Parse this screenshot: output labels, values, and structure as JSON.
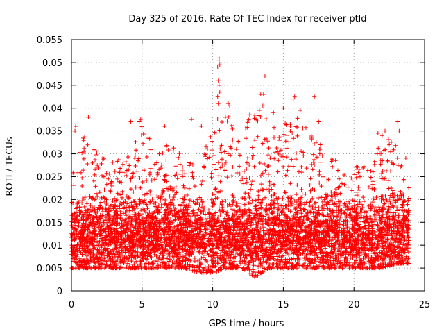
{
  "chart_data": {
    "type": "scatter",
    "title": "Day 325 of 2016, Rate Of TEC Index for receiver ptld",
    "xlabel": "GPS time / hours",
    "ylabel": "ROTI / TECUs",
    "xlim": [
      0,
      25
    ],
    "ylim": [
      0,
      0.055
    ],
    "xticks": [
      "0",
      "5",
      "10",
      "15",
      "20",
      "25"
    ],
    "xtick_values": [
      0,
      5,
      10,
      15,
      20,
      25
    ],
    "yticks": [
      "0",
      "0.005",
      "0.01",
      "0.015",
      "0.02",
      "0.025",
      "0.03",
      "0.035",
      "0.04",
      "0.045",
      "0.05",
      "0.055"
    ],
    "ytick_values": [
      0,
      0.005,
      0.01,
      0.015,
      0.02,
      0.025,
      0.03,
      0.035,
      0.04,
      0.045,
      0.05,
      0.055
    ],
    "grid": true,
    "marker": "+",
    "color": "#ff0000",
    "series": [
      {
        "name": "ROTI",
        "x_range": [
          0,
          23.9
        ],
        "envelope_hours": [
          0,
          1,
          2,
          3,
          4,
          5,
          6,
          7,
          8,
          9,
          10,
          11,
          12,
          13,
          14,
          15,
          16,
          17,
          18,
          19,
          20,
          21,
          22,
          23,
          24
        ],
        "envelope_min": [
          0.005,
          0.005,
          0.005,
          0.005,
          0.005,
          0.005,
          0.005,
          0.005,
          0.005,
          0.004,
          0.004,
          0.005,
          0.005,
          0.003,
          0.005,
          0.005,
          0.005,
          0.005,
          0.005,
          0.005,
          0.005,
          0.005,
          0.005,
          0.006,
          0.006
        ],
        "envelope_max": [
          0.026,
          0.035,
          0.03,
          0.029,
          0.03,
          0.037,
          0.032,
          0.033,
          0.03,
          0.03,
          0.037,
          0.04,
          0.033,
          0.043,
          0.037,
          0.037,
          0.038,
          0.036,
          0.03,
          0.029,
          0.028,
          0.027,
          0.034,
          0.033,
          0.028
        ],
        "typical": 0.012,
        "outliers": [
          {
            "x": 0.3,
            "y": 0.036
          },
          {
            "x": 0.25,
            "y": 0.035
          },
          {
            "x": 1.2,
            "y": 0.038
          },
          {
            "x": 4.2,
            "y": 0.037
          },
          {
            "x": 4.8,
            "y": 0.037
          },
          {
            "x": 4.9,
            "y": 0.0375
          },
          {
            "x": 6.6,
            "y": 0.036
          },
          {
            "x": 8.5,
            "y": 0.0375
          },
          {
            "x": 9.2,
            "y": 0.036
          },
          {
            "x": 10.45,
            "y": 0.051
          },
          {
            "x": 10.45,
            "y": 0.0505
          },
          {
            "x": 10.35,
            "y": 0.049
          },
          {
            "x": 10.5,
            "y": 0.0495
          },
          {
            "x": 10.4,
            "y": 0.046
          },
          {
            "x": 10.45,
            "y": 0.045
          },
          {
            "x": 10.5,
            "y": 0.0435
          },
          {
            "x": 10.35,
            "y": 0.0425
          },
          {
            "x": 10.4,
            "y": 0.041
          },
          {
            "x": 11.1,
            "y": 0.041
          },
          {
            "x": 11.2,
            "y": 0.0405
          },
          {
            "x": 10.9,
            "y": 0.038
          },
          {
            "x": 13.4,
            "y": 0.043
          },
          {
            "x": 13.6,
            "y": 0.043
          },
          {
            "x": 13.7,
            "y": 0.047
          },
          {
            "x": 13.3,
            "y": 0.0395
          },
          {
            "x": 13.55,
            "y": 0.0405
          },
          {
            "x": 14.3,
            "y": 0.039
          },
          {
            "x": 15.0,
            "y": 0.04
          },
          {
            "x": 15.7,
            "y": 0.042
          },
          {
            "x": 15.8,
            "y": 0.0425
          },
          {
            "x": 16.2,
            "y": 0.0395
          },
          {
            "x": 17.2,
            "y": 0.0425
          },
          {
            "x": 17.5,
            "y": 0.037
          },
          {
            "x": 21.7,
            "y": 0.0345
          },
          {
            "x": 22.2,
            "y": 0.035
          },
          {
            "x": 22.0,
            "y": 0.034
          },
          {
            "x": 23.1,
            "y": 0.037
          },
          {
            "x": 23.2,
            "y": 0.035
          },
          {
            "x": 22.5,
            "y": 0.032
          }
        ]
      }
    ]
  }
}
